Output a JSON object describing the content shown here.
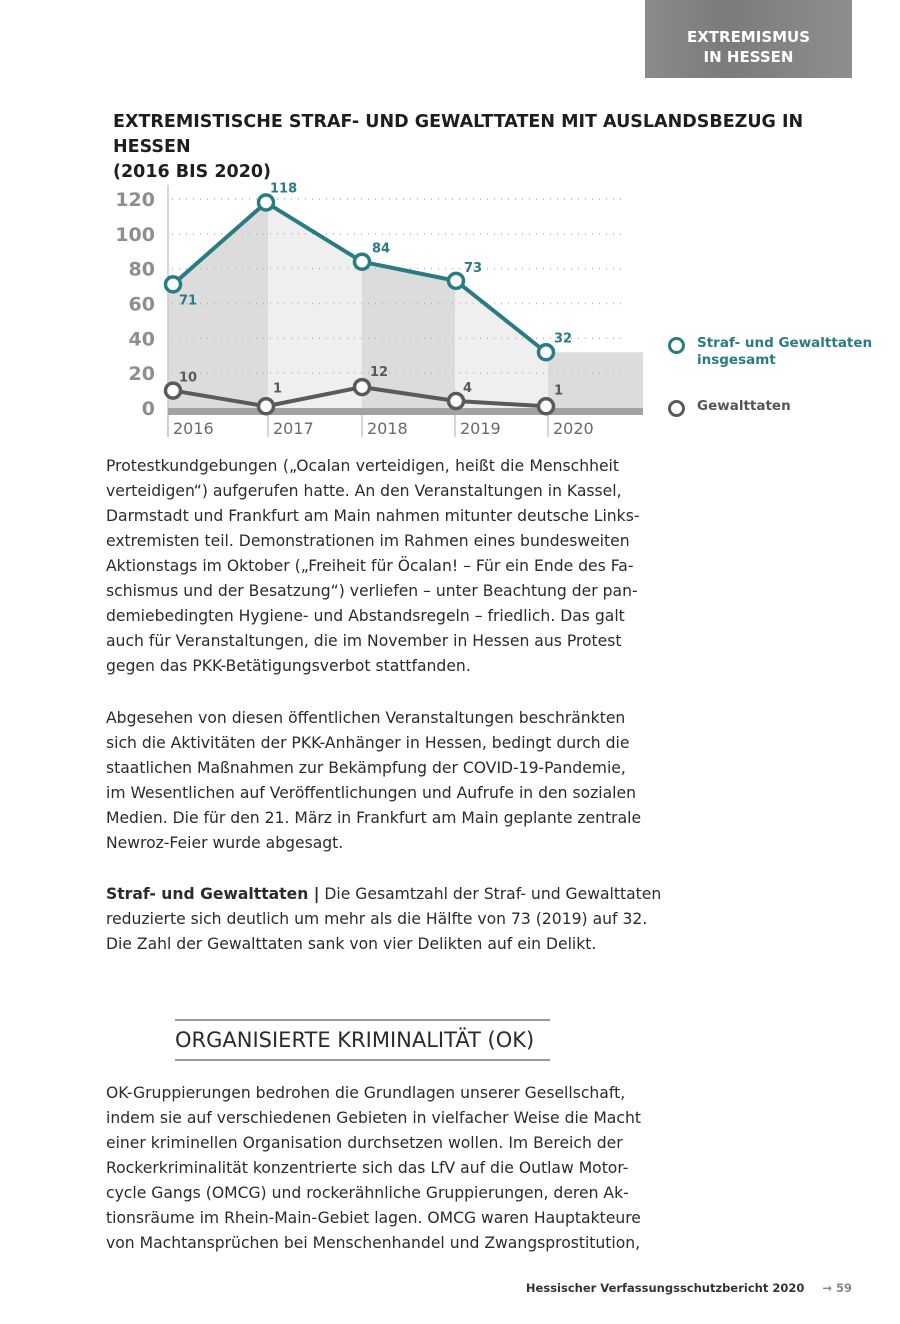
{
  "header": {
    "tab_line1": "EXTREMISMUS",
    "tab_line2": "IN HESSEN"
  },
  "chart_title": {
    "line1": "EXTREMISTISCHE STRAF- UND GEWALTTATEN MIT AUSLANDSBEZUG IN HESSEN",
    "line2": "(2016 BIS 2020)"
  },
  "chart_data": {
    "type": "line",
    "title": "EXTREMISTISCHE STRAF- UND GEWALTTATEN MIT AUSLANDSBEZUG IN HESSEN (2016 BIS 2020)",
    "categories": [
      "2016",
      "2017",
      "2018",
      "2019",
      "2020"
    ],
    "yticks": [
      "0",
      "20",
      "40",
      "60",
      "80",
      "100",
      "120"
    ],
    "ylim": [
      0,
      120
    ],
    "grid": true,
    "legend_position": "right",
    "series": [
      {
        "name": "Straf- und Gewalttaten insgesamt",
        "values": [
          71,
          118,
          84,
          73,
          32
        ],
        "labels": [
          "71",
          "118",
          "84",
          "73",
          "32"
        ],
        "color": "#2a7c83"
      },
      {
        "name": "Gewalttaten",
        "values": [
          10,
          1,
          12,
          4,
          1
        ],
        "labels": [
          "10",
          "1",
          "12",
          "4",
          "1"
        ],
        "color": "#5a5a5a"
      }
    ]
  },
  "legend": {
    "item1_line1": "Straf- und Gewalttaten",
    "item1_line2": "insgesamt",
    "item2": "Gewalttaten"
  },
  "paragraphs": [
    {
      "lines": [
        "Protestkundgebungen („Ocalan verteidigen, heißt die Menschheit",
        "verteidigen“) aufgerufen hatte. An den Veranstaltungen in Kassel,",
        "Darmstadt und Frankfurt am Main nahmen mitunter deutsche Links-",
        "extremisten teil. Demonstrationen im Rahmen eines bundesweiten",
        "Aktionstags im Oktober („Freiheit für Öcalan! – Für ein Ende des Fa-",
        "schismus und der Besatzung“) verliefen – unter Beachtung der pan-",
        "demiebedingten Hygiene- und Abstandsregeln – friedlich. Das galt",
        "auch für Veranstaltungen, die im November in Hessen aus Protest",
        "gegen das PKK-Betätigungsverbot stattfanden."
      ]
    },
    {
      "lines": [
        "Abgesehen von diesen öffentlichen Veranstaltungen beschränkten",
        "sich die Aktivitäten der PKK-Anhänger in Hessen, bedingt durch die",
        "staatlichen Maßnahmen zur Bekämpfung der COVID-19-Pandemie,",
        "im Wesentlichen auf Veröffentlichungen und Aufrufe in den sozialen",
        "Medien. Die für den 21. März in Frankfurt am Main geplante zentrale",
        "Newroz-Feier wurde abgesagt."
      ]
    },
    {
      "lead": "Straf- und Gewalttaten |",
      "lines": [
        " Die Gesamtzahl der Straf- und Gewalttaten",
        "reduzierte sich deutlich um mehr als die Hälfte von 73 (2019) auf 32.",
        "Die Zahl der Gewalttaten sank von vier Delikten auf ein Delikt."
      ]
    },
    {
      "lines": [
        "OK-Gruppierungen bedrohen die Grundlagen unserer Gesellschaft,",
        "indem sie auf verschiedenen Gebieten in vielfacher Weise die Macht",
        "einer kriminellen Organisation durchsetzen wollen. Im Bereich der",
        "Rockerkriminalität konzentrierte sich das LfV auf die Outlaw Motor-",
        "cycle Gangs (OMCG) und rockerähnliche Gruppierungen, deren Ak-",
        "tionsräume im Rhein-Main-Gebiet lagen. OMCG waren Hauptakteure",
        "von Machtansprüchen bei Menschenhandel und Zwangsprostitution,"
      ]
    }
  ],
  "section_heading": "ORGANISIERTE KRIMINALITÄT (OK)",
  "footer": {
    "publication": "Hessischer Verfassungsschutzbericht 2020",
    "page": "→ 59"
  }
}
